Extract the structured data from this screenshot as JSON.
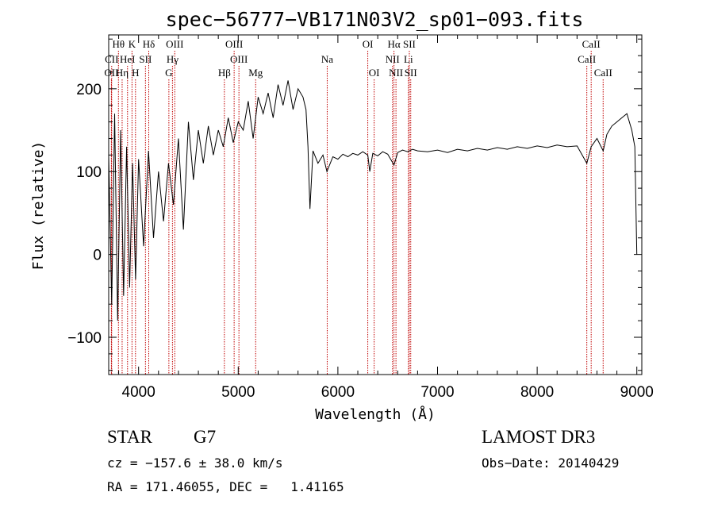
{
  "chart_data": {
    "type": "line",
    "title": "spec−56777−VB171N03V2_sp01−093.fits",
    "xlabel": "Wavelength (Å)",
    "ylabel": "Flux (relative)",
    "xlim": [
      3700,
      9050
    ],
    "ylim": [
      -145,
      265
    ],
    "x_ticks": [
      4000,
      5000,
      6000,
      7000,
      8000,
      9000
    ],
    "y_ticks": [
      -100,
      0,
      100,
      200
    ],
    "x_tick_labels": [
      "4000",
      "5000",
      "6000",
      "7000",
      "8000",
      "9000"
    ],
    "y_tick_labels": [
      "−100",
      "0",
      "100",
      "200"
    ],
    "series": [
      {
        "name": "flux",
        "x": [
          3700,
          3730,
          3760,
          3790,
          3820,
          3850,
          3880,
          3910,
          3940,
          3970,
          4000,
          4050,
          4100,
          4150,
          4200,
          4250,
          4300,
          4350,
          4400,
          4450,
          4500,
          4550,
          4600,
          4650,
          4700,
          4750,
          4800,
          4850,
          4900,
          4950,
          5000,
          5050,
          5100,
          5150,
          5200,
          5250,
          5300,
          5350,
          5400,
          5450,
          5500,
          5550,
          5600,
          5650,
          5680,
          5700,
          5720,
          5750,
          5800,
          5850,
          5890,
          5950,
          6000,
          6050,
          6100,
          6150,
          6200,
          6250,
          6300,
          6320,
          6350,
          6400,
          6450,
          6500,
          6563,
          6600,
          6650,
          6700,
          6750,
          6800,
          6900,
          7000,
          7100,
          7200,
          7300,
          7400,
          7500,
          7600,
          7700,
          7800,
          7900,
          8000,
          8100,
          8200,
          8300,
          8400,
          8498,
          8542,
          8600,
          8662,
          8700,
          8750,
          8800,
          8850,
          8900,
          8950,
          8980,
          9000
        ],
        "y": [
          120,
          -60,
          170,
          -80,
          150,
          -50,
          130,
          -40,
          110,
          -30,
          115,
          10,
          125,
          20,
          100,
          40,
          110,
          60,
          140,
          30,
          160,
          90,
          150,
          110,
          155,
          120,
          150,
          130,
          165,
          135,
          160,
          150,
          185,
          140,
          190,
          170,
          195,
          165,
          205,
          180,
          210,
          175,
          200,
          190,
          175,
          130,
          55,
          125,
          110,
          120,
          100,
          118,
          115,
          121,
          118,
          122,
          120,
          124,
          120,
          100,
          122,
          119,
          124,
          121,
          108,
          123,
          126,
          124,
          127,
          125,
          124,
          126,
          123,
          127,
          125,
          128,
          126,
          129,
          127,
          130,
          128,
          131,
          129,
          132,
          130,
          131,
          110,
          130,
          140,
          125,
          145,
          155,
          160,
          165,
          170,
          150,
          130,
          0
        ]
      }
    ],
    "line_markers": [
      {
        "label": "Hθ",
        "wave": 3798,
        "row": 0
      },
      {
        "label": "K",
        "wave": 3934,
        "row": 0
      },
      {
        "label": "Hδ",
        "wave": 4102,
        "row": 0
      },
      {
        "label": "OIII",
        "wave": 4363,
        "row": 0
      },
      {
        "label": "OIII",
        "wave": 4959,
        "row": 0
      },
      {
        "label": "OI",
        "wave": 6300,
        "row": 0
      },
      {
        "label": "Hα",
        "wave": 6563,
        "row": 0
      },
      {
        "label": "SII",
        "wave": 6717,
        "row": 0
      },
      {
        "label": "CaII",
        "wave": 8542,
        "row": 0
      },
      {
        "label": "CII",
        "wave": 3730,
        "row": 1
      },
      {
        "label": "HeI",
        "wave": 3889,
        "row": 1
      },
      {
        "label": "SII",
        "wave": 4069,
        "row": 1
      },
      {
        "label": "Hγ",
        "wave": 4340,
        "row": 1
      },
      {
        "label": "OIII",
        "wave": 5007,
        "row": 1
      },
      {
        "label": "Na",
        "wave": 5893,
        "row": 1
      },
      {
        "label": "NII",
        "wave": 6548,
        "row": 1
      },
      {
        "label": "Li",
        "wave": 6708,
        "row": 1
      },
      {
        "label": "CaII",
        "wave": 8498,
        "row": 1
      },
      {
        "label": "OII",
        "wave": 3727,
        "row": 2
      },
      {
        "label": "Hη",
        "wave": 3835,
        "row": 2
      },
      {
        "label": "H",
        "wave": 3969,
        "row": 2
      },
      {
        "label": "G",
        "wave": 4304,
        "row": 2
      },
      {
        "label": "Hβ",
        "wave": 4861,
        "row": 2
      },
      {
        "label": "Mg",
        "wave": 5175,
        "row": 2
      },
      {
        "label": "OI",
        "wave": 6364,
        "row": 2
      },
      {
        "label": "NII",
        "wave": 6583,
        "row": 2
      },
      {
        "label": "SII",
        "wave": 6731,
        "row": 2
      },
      {
        "label": "CaII",
        "wave": 8662,
        "row": 2
      }
    ]
  },
  "info": {
    "class": "STAR",
    "subclass": "G7",
    "survey": "LAMOST DR3",
    "cz": "cz = −157.6 ± 38.0 km/s",
    "obs_date": "Obs−Date: 20140429",
    "radec": "RA = 171.46055, DEC =   1.41165"
  },
  "colors": {
    "spectrum": "#000000",
    "marker_line": "#c00000"
  }
}
